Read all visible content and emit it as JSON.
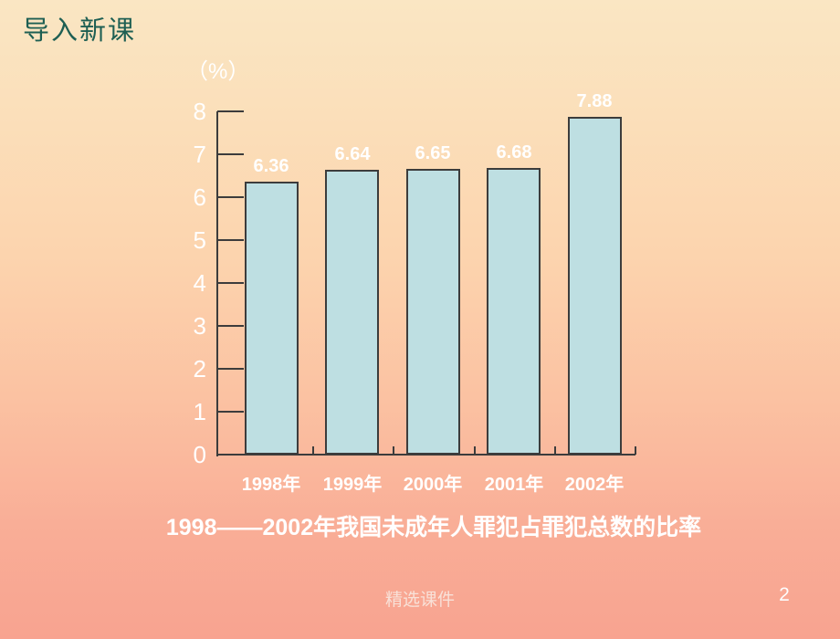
{
  "slide": {
    "title": "导入新课",
    "caption": "1998——2002年我国未成年人罪犯占罪犯总数的比率",
    "footer": "精选课件",
    "page_number": "2"
  },
  "chart_data": {
    "type": "bar",
    "title": "1998——2002年我国未成年人罪犯占罪犯总数的比率",
    "unit_label": "（%）",
    "categories": [
      "1998年",
      "1999年",
      "2000年",
      "2001年",
      "2002年"
    ],
    "values": [
      6.36,
      6.64,
      6.65,
      6.68,
      7.88
    ],
    "value_labels": [
      "6.36",
      "6.64",
      "6.65",
      "6.68",
      "7.88"
    ],
    "xlabel": "",
    "ylabel": "%",
    "ylim": [
      0,
      8
    ],
    "ytick_step": 1,
    "ytick_labels": [
      "0",
      "1",
      "2",
      "3",
      "4",
      "5",
      "6",
      "7",
      "8"
    ],
    "grid": false,
    "legend": null,
    "colors": {
      "bar_fill": "#bedfe2",
      "bar_border": "#3c3c3c",
      "axis": "#3c3c3c",
      "label_text": "#ffffff"
    }
  },
  "colors": {
    "background_gradient_top": "#fae6c3",
    "background_gradient_bottom": "#f8a390",
    "title_color": "#1e5f53",
    "chart_text": "#ffffff"
  }
}
